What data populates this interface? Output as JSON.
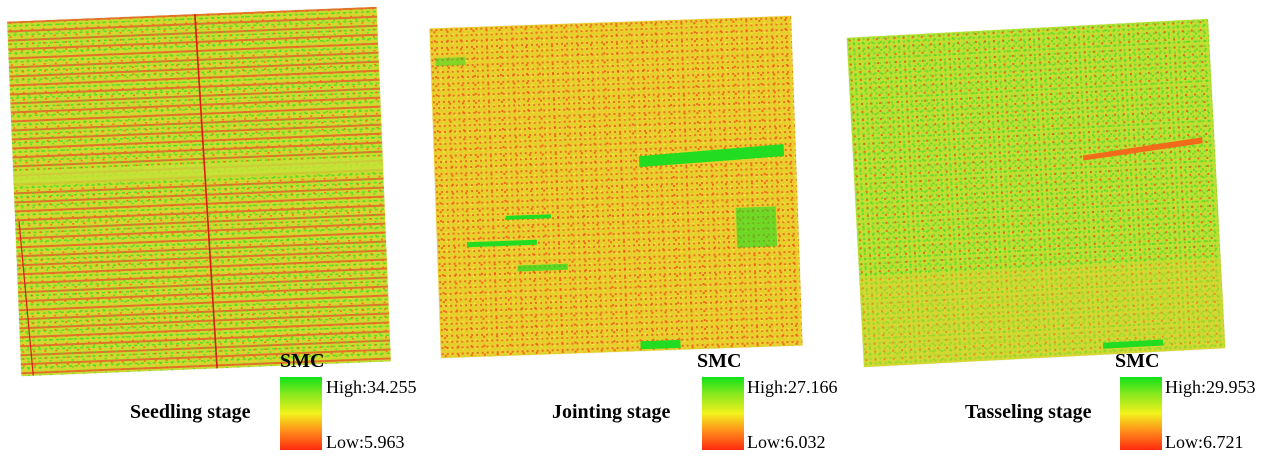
{
  "legend_title": "SMC",
  "panels": [
    {
      "stage": "Seedling stage",
      "high": "High:34.255",
      "low": "Low:5.963"
    },
    {
      "stage": "Jointing stage",
      "high": "High:27.166",
      "low": "Low:6.032"
    },
    {
      "stage": "Tasseling stage",
      "high": "High:29.953",
      "low": "Low:6.721"
    }
  ],
  "colors": {
    "high": "#10e21a",
    "mid": "#f2f21c",
    "low": "#ff2a10"
  }
}
